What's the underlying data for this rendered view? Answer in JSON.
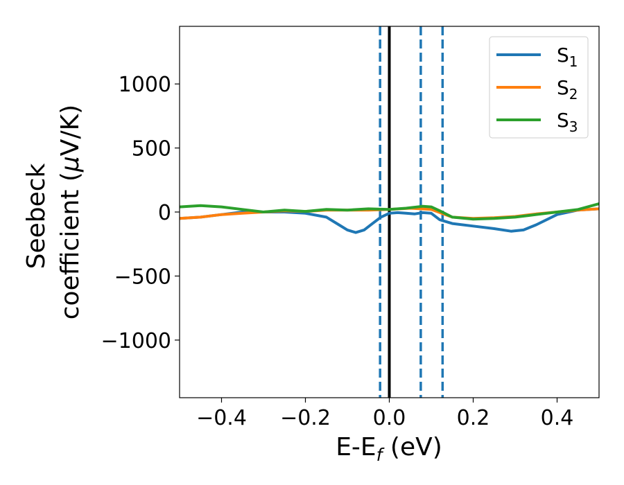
{
  "chart_data": {
    "type": "line",
    "title": "",
    "xlabel": {
      "main": "E-E",
      "sub": "f",
      "unit": " (eV)"
    },
    "ylabel": {
      "line1": "Seebeck",
      "line2": "coefficient  (",
      "mu": "μ",
      "line2_end": "V/K)"
    },
    "xlim": [
      -0.5,
      0.5
    ],
    "ylim": [
      -1450,
      1450
    ],
    "xticks": [
      -0.4,
      -0.2,
      0.0,
      0.2,
      0.4
    ],
    "xtick_labels": [
      "−0.4",
      "−0.2",
      "0.0",
      "0.2",
      "0.4"
    ],
    "yticks": [
      -1000,
      -500,
      0,
      500,
      1000
    ],
    "ytick_labels": [
      "−1000",
      "−500",
      "0",
      "500",
      "1000"
    ],
    "grid": false,
    "legend_position": "top-right",
    "vertical_lines": [
      {
        "x": -0.022,
        "style": "dashed",
        "color": "#1f77b4"
      },
      {
        "x": 0.0,
        "style": "solid",
        "color": "#000000"
      },
      {
        "x": 0.075,
        "style": "dashed",
        "color": "#1f77b4"
      },
      {
        "x": 0.127,
        "style": "dashed",
        "color": "#1f77b4"
      }
    ],
    "series": [
      {
        "name": "S",
        "sub": "1",
        "color": "#1f77b4",
        "x": [
          -0.5,
          -0.45,
          -0.4,
          -0.35,
          -0.3,
          -0.25,
          -0.2,
          -0.15,
          -0.12,
          -0.1,
          -0.08,
          -0.06,
          -0.04,
          -0.02,
          0.0,
          0.02,
          0.04,
          0.06,
          0.08,
          0.1,
          0.12,
          0.15,
          0.2,
          0.25,
          0.29,
          0.32,
          0.35,
          0.4,
          0.45,
          0.5
        ],
        "y": [
          -50,
          -40,
          -20,
          0,
          0,
          0,
          -10,
          -40,
          -100,
          -140,
          -160,
          -140,
          -90,
          -40,
          -10,
          -5,
          -10,
          -15,
          -5,
          -10,
          -60,
          -90,
          -110,
          -130,
          -150,
          -140,
          -100,
          -20,
          15,
          25
        ]
      },
      {
        "name": "S",
        "sub": "2",
        "color": "#ff7f0e",
        "x": [
          -0.5,
          -0.45,
          -0.4,
          -0.35,
          -0.3,
          -0.25,
          -0.2,
          -0.15,
          -0.1,
          -0.05,
          0.0,
          0.05,
          0.1,
          0.15,
          0.2,
          0.25,
          0.3,
          0.35,
          0.4,
          0.45,
          0.5
        ],
        "y": [
          -50,
          -40,
          -20,
          -10,
          0,
          10,
          5,
          15,
          15,
          15,
          20,
          30,
          20,
          -40,
          -50,
          -45,
          -35,
          -15,
          0,
          15,
          25
        ]
      },
      {
        "name": "S",
        "sub": "3",
        "color": "#2ca02c",
        "x": [
          -0.5,
          -0.45,
          -0.4,
          -0.35,
          -0.3,
          -0.25,
          -0.2,
          -0.15,
          -0.1,
          -0.05,
          0.0,
          0.04,
          0.08,
          0.1,
          0.12,
          0.15,
          0.2,
          0.25,
          0.3,
          0.35,
          0.4,
          0.45,
          0.5
        ],
        "y": [
          40,
          50,
          40,
          20,
          0,
          15,
          5,
          20,
          15,
          25,
          20,
          30,
          45,
          40,
          10,
          -40,
          -55,
          -50,
          -40,
          -20,
          0,
          20,
          65
        ]
      }
    ]
  }
}
